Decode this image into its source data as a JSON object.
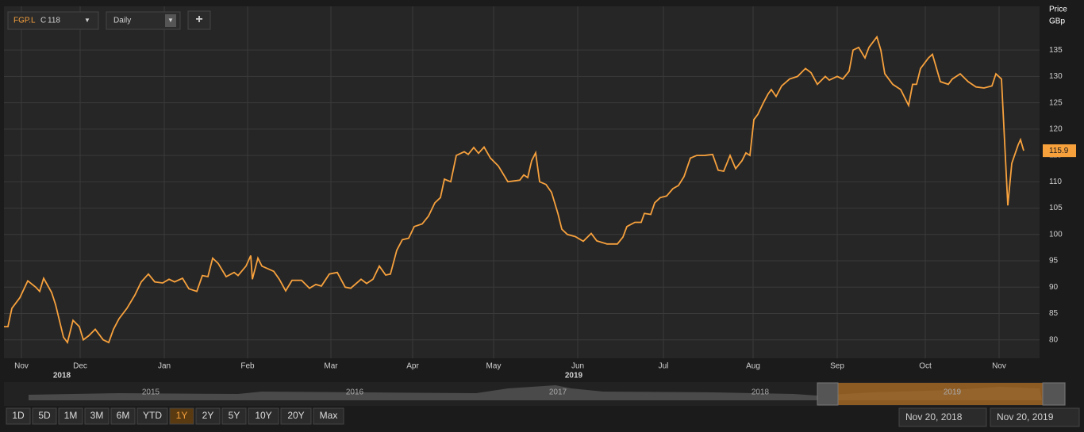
{
  "toolbar": {
    "close_label": "C",
    "interval": "Daily",
    "add": "+"
  },
  "chart_data": {
    "type": "line",
    "y_axis_title": [
      "Price",
      "GBp"
    ],
    "series": [
      {
        "name": "FGP.L",
        "color": "#f7a13d",
        "x": [
          5,
          10,
          15,
          25,
          35,
          45,
          50,
          55,
          65,
          70,
          80,
          85,
          92,
          100,
          105,
          112,
          120,
          130,
          137,
          143,
          150,
          160,
          170,
          178,
          187,
          195,
          205,
          213,
          220,
          230,
          238,
          248,
          255,
          262,
          268,
          275,
          285,
          295,
          300,
          310,
          316,
          318,
          325,
          330,
          345,
          352,
          360,
          368,
          380,
          390,
          398,
          405,
          415,
          425,
          435,
          442,
          455,
          462,
          470,
          478,
          486,
          492,
          500,
          507,
          515,
          522,
          532,
          540,
          548,
          555,
          560,
          568,
          575,
          585,
          590,
          597,
          603,
          610,
          618,
          628,
          640,
          655,
          660,
          665,
          670,
          675,
          680,
          688,
          695,
          703,
          708,
          715,
          725,
          735,
          745,
          752,
          765,
          778,
          785,
          790,
          800,
          808,
          812,
          820,
          825,
          832,
          840,
          848,
          855,
          862,
          870,
          878,
          888,
          898,
          905,
          912,
          920,
          927,
          935,
          940,
          945,
          950,
          955,
          962,
          968,
          972,
          978,
          985,
          995,
          1005,
          1015,
          1022,
          1030,
          1040,
          1045,
          1055,
          1062,
          1070,
          1075,
          1082,
          1090,
          1095,
          1105,
          1110,
          1115,
          1125,
          1135,
          1145,
          1150,
          1155,
          1160,
          1170,
          1175,
          1185,
          1195,
          1200,
          1210,
          1220,
          1230,
          1240,
          1250,
          1255,
          1262,
          1270,
          1275,
          1283,
          1286,
          1290
        ],
        "values": [
          82.5,
          82.5,
          86,
          88,
          91.2,
          90,
          89.2,
          91.7,
          89,
          86.7,
          80.5,
          79.5,
          83.7,
          82.5,
          80,
          80.8,
          82,
          80,
          79.5,
          82,
          84,
          86,
          88.5,
          91,
          92.5,
          91,
          90.8,
          91.5,
          91,
          91.7,
          89.7,
          89.2,
          92.2,
          92,
          95.5,
          94.5,
          92,
          92.8,
          92.2,
          94,
          96,
          91.5,
          95.5,
          94,
          93,
          91.5,
          89.3,
          91.3,
          91.3,
          89.8,
          90.5,
          90.2,
          92.5,
          92.8,
          90,
          89.8,
          91.5,
          90.7,
          91.5,
          94,
          92.3,
          92.5,
          97,
          99,
          99.3,
          101.5,
          102,
          103.5,
          106,
          107,
          110.5,
          110,
          115,
          115.7,
          115.2,
          116.5,
          115.4,
          116.6,
          114.5,
          113,
          110,
          110.3,
          111.3,
          110.8,
          114,
          115.5,
          110,
          109.5,
          108,
          104,
          101,
          100,
          99.6,
          98.7,
          100.2,
          98.8,
          98.2,
          98.2,
          99.5,
          101.5,
          102.3,
          102.3,
          104,
          103.8,
          106,
          107,
          107.3,
          108.7,
          109.3,
          111,
          114.5,
          115,
          115,
          115.2,
          112.2,
          112,
          115,
          112.5,
          114,
          115.5,
          115,
          121.8,
          122.8,
          125,
          126.7,
          127.5,
          126.2,
          128.2,
          129.5,
          130,
          131.5,
          130.7,
          128.5,
          130,
          129.3,
          130,
          129.5,
          131,
          135,
          135.5,
          133.5,
          135.5,
          137.5,
          135,
          130.5,
          128.5,
          127.5,
          124.5,
          128.5,
          128.5,
          131.5,
          133.5,
          134.2,
          129,
          128.5,
          129.5,
          130.5,
          129,
          128,
          127.8,
          128.2,
          130.5,
          129.5,
          105.5,
          113.5,
          117,
          118,
          115.9
        ]
      }
    ],
    "xlim": [
      5,
      1310
    ],
    "xticks": [
      {
        "value": 27,
        "label": "Nov"
      },
      {
        "value": 101,
        "label": "Dec"
      },
      {
        "value": 207,
        "label": "Jan"
      },
      {
        "value": 312,
        "label": "Feb"
      },
      {
        "value": 417,
        "label": "Mar"
      },
      {
        "value": 520,
        "label": "Apr"
      },
      {
        "value": 622,
        "label": "May"
      },
      {
        "value": 728,
        "label": "Jun"
      },
      {
        "value": 836,
        "label": "Jul"
      },
      {
        "value": 949,
        "label": "Aug"
      },
      {
        "value": 1055,
        "label": "Sep"
      },
      {
        "value": 1166,
        "label": "Oct"
      },
      {
        "value": 1259,
        "label": "Nov"
      }
    ],
    "year_labels": [
      {
        "value": 78,
        "label": "2018"
      },
      {
        "value": 723,
        "label": "2019"
      }
    ],
    "ylim": [
      76.5,
      143.3
    ],
    "yticks": [
      80,
      85,
      90,
      95,
      100,
      105,
      110,
      115,
      120,
      125,
      130,
      135
    ],
    "grid": true
  },
  "navigator": {
    "years": [
      "2015",
      "2016",
      "2017",
      "2018",
      "2019"
    ]
  },
  "range_buttons": [
    "1D",
    "5D",
    "1M",
    "3M",
    "6M",
    "YTD",
    "1Y",
    "2Y",
    "5Y",
    "10Y",
    "20Y",
    "Max"
  ],
  "active_range_index": 6,
  "date_range": [
    "Nov 20, 2018",
    "Nov 20, 2019"
  ]
}
